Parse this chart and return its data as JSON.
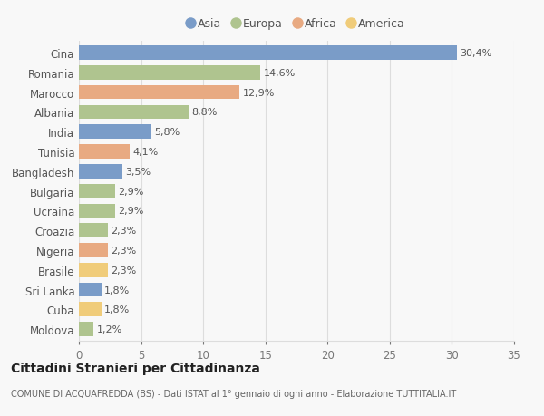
{
  "countries": [
    "Cina",
    "Romania",
    "Marocco",
    "Albania",
    "India",
    "Tunisia",
    "Bangladesh",
    "Bulgaria",
    "Ucraina",
    "Croazia",
    "Nigeria",
    "Brasile",
    "Sri Lanka",
    "Cuba",
    "Moldova"
  ],
  "values": [
    30.4,
    14.6,
    12.9,
    8.8,
    5.8,
    4.1,
    3.5,
    2.9,
    2.9,
    2.3,
    2.3,
    2.3,
    1.8,
    1.8,
    1.2
  ],
  "labels": [
    "30,4%",
    "14,6%",
    "12,9%",
    "8,8%",
    "5,8%",
    "4,1%",
    "3,5%",
    "2,9%",
    "2,9%",
    "2,3%",
    "2,3%",
    "2,3%",
    "1,8%",
    "1,8%",
    "1,2%"
  ],
  "continents": [
    "Asia",
    "Europa",
    "Africa",
    "Europa",
    "Asia",
    "Africa",
    "Asia",
    "Europa",
    "Europa",
    "Europa",
    "Africa",
    "America",
    "Asia",
    "America",
    "Europa"
  ],
  "colors": {
    "Asia": "#7a9cc8",
    "Europa": "#afc48f",
    "Africa": "#e8aa82",
    "America": "#f0cc7a"
  },
  "xlim": [
    0,
    35
  ],
  "xticks": [
    0,
    5,
    10,
    15,
    20,
    25,
    30,
    35
  ],
  "title": "Cittadini Stranieri per Cittadinanza",
  "subtitle": "COMUNE DI ACQUAFREDDA (BS) - Dati ISTAT al 1° gennaio di ogni anno - Elaborazione TUTTITALIA.IT",
  "background_color": "#f8f8f8",
  "grid_color": "#dddddd",
  "bar_height": 0.72,
  "label_fontsize": 8,
  "tick_fontsize": 8.5,
  "legend_order": [
    "Asia",
    "Europa",
    "Africa",
    "America"
  ]
}
